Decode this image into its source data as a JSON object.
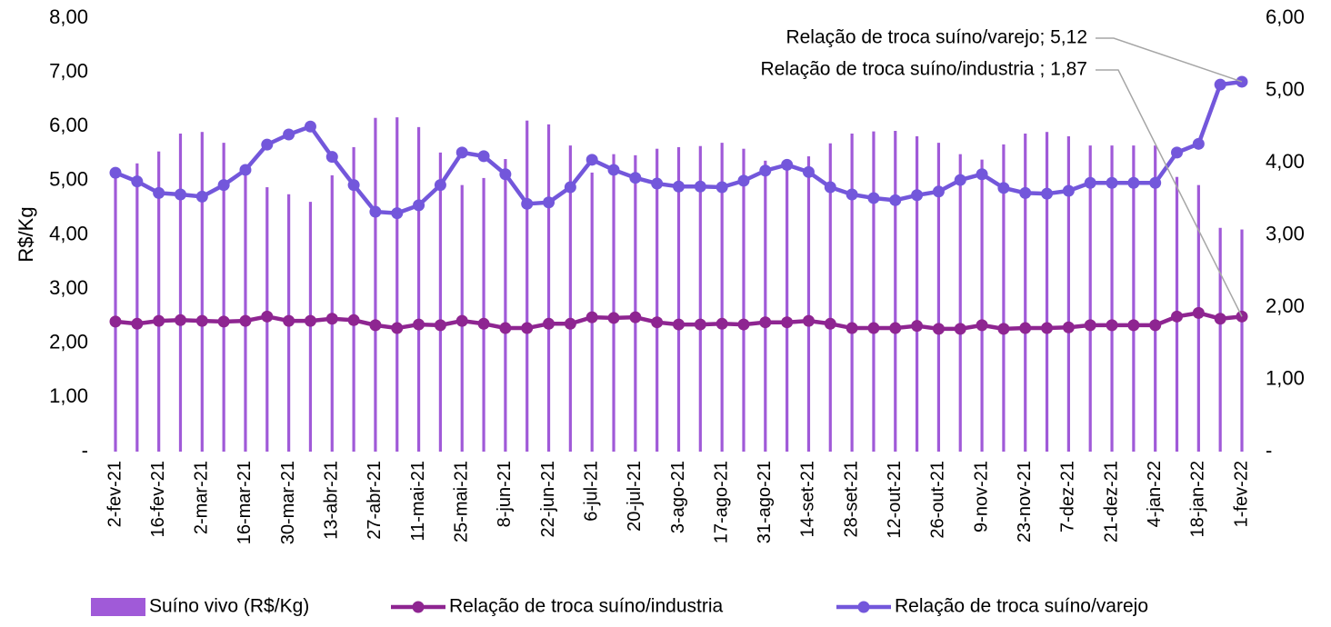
{
  "chart_data": {
    "type": "combo",
    "y_label": "R$/Kg",
    "categories": [
      "2-fev-21",
      null,
      "16-fev-21",
      null,
      "2-mar-21",
      null,
      "16-mar-21",
      null,
      "30-mar-21",
      null,
      "13-abr-21",
      null,
      "27-abr-21",
      null,
      "11-mai-21",
      null,
      "25-mai-21",
      null,
      "8-jun-21",
      null,
      "22-jun-21",
      null,
      "6-jul-21",
      null,
      "20-jul-21",
      null,
      "3-ago-21",
      null,
      "17-ago-21",
      null,
      "31-ago-21",
      null,
      "14-set-21",
      null,
      "28-set-21",
      null,
      "12-out-21",
      null,
      "26-out-21",
      null,
      "9-nov-21",
      null,
      "23-nov-21",
      null,
      "7-dez-21",
      null,
      "21-dez-21",
      null,
      "4-jan-22",
      null,
      "18-jan-22",
      null,
      "1-fev-22"
    ],
    "series": [
      {
        "name": "Suíno vivo (R$/Kg)",
        "type": "bar",
        "color": "#a05ad8",
        "axis": "y",
        "values": [
          5.15,
          5.32,
          5.54,
          5.87,
          5.9,
          5.7,
          5.1,
          4.88,
          4.75,
          4.61,
          5.1,
          5.62,
          6.16,
          6.17,
          5.99,
          5.52,
          4.92,
          5.05,
          5.4,
          6.11,
          6.04,
          5.65,
          5.15,
          5.49,
          5.47,
          5.59,
          5.62,
          5.64,
          5.7,
          5.59,
          5.37,
          5.27,
          5.45,
          5.69,
          5.87,
          5.91,
          5.92,
          5.82,
          5.7,
          5.49,
          5.39,
          5.67,
          5.87,
          5.9,
          5.82,
          5.65,
          5.65,
          5.65,
          5.65,
          5.07,
          4.92,
          4.13,
          4.1
        ]
      },
      {
        "name": "Relação de troca suíno/industria",
        "type": "line",
        "color": "#8e2591",
        "axis": "y2",
        "values": [
          1.8,
          1.77,
          1.81,
          1.82,
          1.81,
          1.8,
          1.81,
          1.87,
          1.81,
          1.81,
          1.84,
          1.82,
          1.75,
          1.71,
          1.76,
          1.75,
          1.81,
          1.77,
          1.71,
          1.71,
          1.77,
          1.77,
          1.86,
          1.85,
          1.86,
          1.79,
          1.76,
          1.76,
          1.77,
          1.76,
          1.79,
          1.79,
          1.81,
          1.77,
          1.71,
          1.71,
          1.71,
          1.74,
          1.7,
          1.7,
          1.75,
          1.7,
          1.71,
          1.71,
          1.72,
          1.75,
          1.75,
          1.75,
          1.75,
          1.87,
          1.92,
          1.84,
          1.87
        ]
      },
      {
        "name": "Relação de troca suíno/varejo",
        "type": "line",
        "color": "#7357db",
        "axis": "y2",
        "values": [
          3.86,
          3.74,
          3.58,
          3.56,
          3.53,
          3.69,
          3.9,
          4.25,
          4.39,
          4.5,
          4.08,
          3.69,
          3.32,
          3.3,
          3.41,
          3.69,
          4.14,
          4.09,
          3.84,
          3.43,
          3.45,
          3.66,
          4.04,
          3.9,
          3.79,
          3.71,
          3.67,
          3.67,
          3.66,
          3.75,
          3.89,
          3.97,
          3.87,
          3.66,
          3.56,
          3.51,
          3.48,
          3.55,
          3.6,
          3.76,
          3.84,
          3.65,
          3.58,
          3.57,
          3.61,
          3.72,
          3.72,
          3.72,
          3.72,
          4.14,
          4.26,
          5.08,
          5.12
        ]
      }
    ],
    "ylim": [
      0,
      8
    ],
    "yticks": [
      {
        "value": 0,
        "label": "-"
      },
      {
        "value": 1,
        "label": "1,00"
      },
      {
        "value": 2,
        "label": "2,00"
      },
      {
        "value": 3,
        "label": "3,00"
      },
      {
        "value": 4,
        "label": "4,00"
      },
      {
        "value": 5,
        "label": "5,00"
      },
      {
        "value": 6,
        "label": "6,00"
      },
      {
        "value": 7,
        "label": "7,00"
      },
      {
        "value": 8,
        "label": "8,00"
      }
    ],
    "y2lim": [
      0,
      6
    ],
    "y2ticks": [
      {
        "value": 0,
        "label": "-"
      },
      {
        "value": 1,
        "label": "1,00"
      },
      {
        "value": 2,
        "label": "2,00"
      },
      {
        "value": 3,
        "label": "3,00"
      },
      {
        "value": 4,
        "label": "4,00"
      },
      {
        "value": 5,
        "label": "5,00"
      },
      {
        "value": 6,
        "label": "6,00"
      }
    ],
    "annotations": [
      "Relação de troca suíno/varejo; 5,12",
      "Relação de troca suíno/industria ; 1,87"
    ],
    "legend": "bottom"
  }
}
